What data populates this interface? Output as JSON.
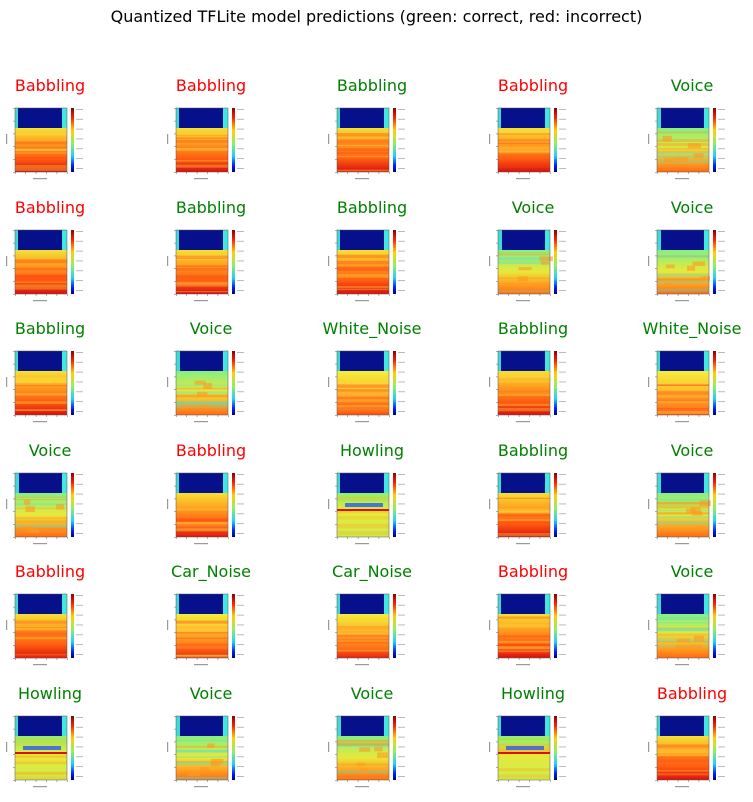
{
  "figure": {
    "title": "Quantized TFLite model predictions (green: correct, red: incorrect)"
  },
  "colors": {
    "correct": "#008000",
    "incorrect": "#ff0000"
  },
  "chart_data": {
    "type": "image_grid",
    "rows": 6,
    "cols": 5,
    "legend": {
      "green": "correct",
      "red": "incorrect"
    },
    "items": [
      {
        "label": "Babbling",
        "correct": false,
        "pattern": "babbling"
      },
      {
        "label": "Babbling",
        "correct": false,
        "pattern": "babbling"
      },
      {
        "label": "Babbling",
        "correct": true,
        "pattern": "babbling"
      },
      {
        "label": "Babbling",
        "correct": false,
        "pattern": "babbling"
      },
      {
        "label": "Voice",
        "correct": true,
        "pattern": "voice"
      },
      {
        "label": "Babbling",
        "correct": false,
        "pattern": "babbling"
      },
      {
        "label": "Babbling",
        "correct": true,
        "pattern": "babbling"
      },
      {
        "label": "Babbling",
        "correct": true,
        "pattern": "babbling"
      },
      {
        "label": "Voice",
        "correct": true,
        "pattern": "voice"
      },
      {
        "label": "Voice",
        "correct": true,
        "pattern": "voice"
      },
      {
        "label": "Babbling",
        "correct": true,
        "pattern": "babbling"
      },
      {
        "label": "Voice",
        "correct": true,
        "pattern": "voice"
      },
      {
        "label": "White_Noise",
        "correct": true,
        "pattern": "white_noise"
      },
      {
        "label": "Babbling",
        "correct": true,
        "pattern": "babbling"
      },
      {
        "label": "White_Noise",
        "correct": true,
        "pattern": "white_noise"
      },
      {
        "label": "Voice",
        "correct": true,
        "pattern": "voice"
      },
      {
        "label": "Babbling",
        "correct": false,
        "pattern": "babbling"
      },
      {
        "label": "Howling",
        "correct": true,
        "pattern": "howling"
      },
      {
        "label": "Babbling",
        "correct": true,
        "pattern": "babbling"
      },
      {
        "label": "Voice",
        "correct": true,
        "pattern": "voice"
      },
      {
        "label": "Babbling",
        "correct": false,
        "pattern": "babbling"
      },
      {
        "label": "Car_Noise",
        "correct": true,
        "pattern": "car_noise"
      },
      {
        "label": "Car_Noise",
        "correct": true,
        "pattern": "car_noise"
      },
      {
        "label": "Babbling",
        "correct": false,
        "pattern": "babbling"
      },
      {
        "label": "Voice",
        "correct": true,
        "pattern": "voice"
      },
      {
        "label": "Howling",
        "correct": true,
        "pattern": "howling"
      },
      {
        "label": "Voice",
        "correct": true,
        "pattern": "voice"
      },
      {
        "label": "Voice",
        "correct": true,
        "pattern": "voice"
      },
      {
        "label": "Howling",
        "correct": true,
        "pattern": "howling"
      },
      {
        "label": "Babbling",
        "correct": false,
        "pattern": "babbling"
      }
    ]
  }
}
